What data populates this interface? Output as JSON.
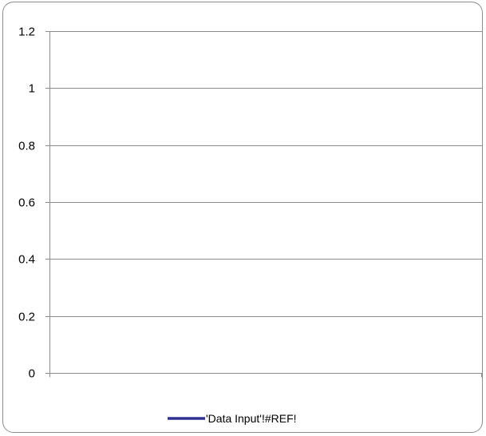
{
  "chart_data": {
    "type": "line",
    "title": "",
    "xlabel": "",
    "ylabel": "",
    "ylim": [
      0,
      1.2
    ],
    "y_ticks": [
      "0",
      "0.2",
      "0.4",
      "0.6",
      "0.8",
      "1",
      "1.2"
    ],
    "y_tick_values": [
      0,
      0.2,
      0.4,
      0.6,
      0.8,
      1,
      1.2
    ],
    "grid": true,
    "legend_position": "bottom",
    "series": [
      {
        "name": "'Data Input'!#REF!",
        "color": "#2e3192",
        "values": []
      }
    ]
  }
}
